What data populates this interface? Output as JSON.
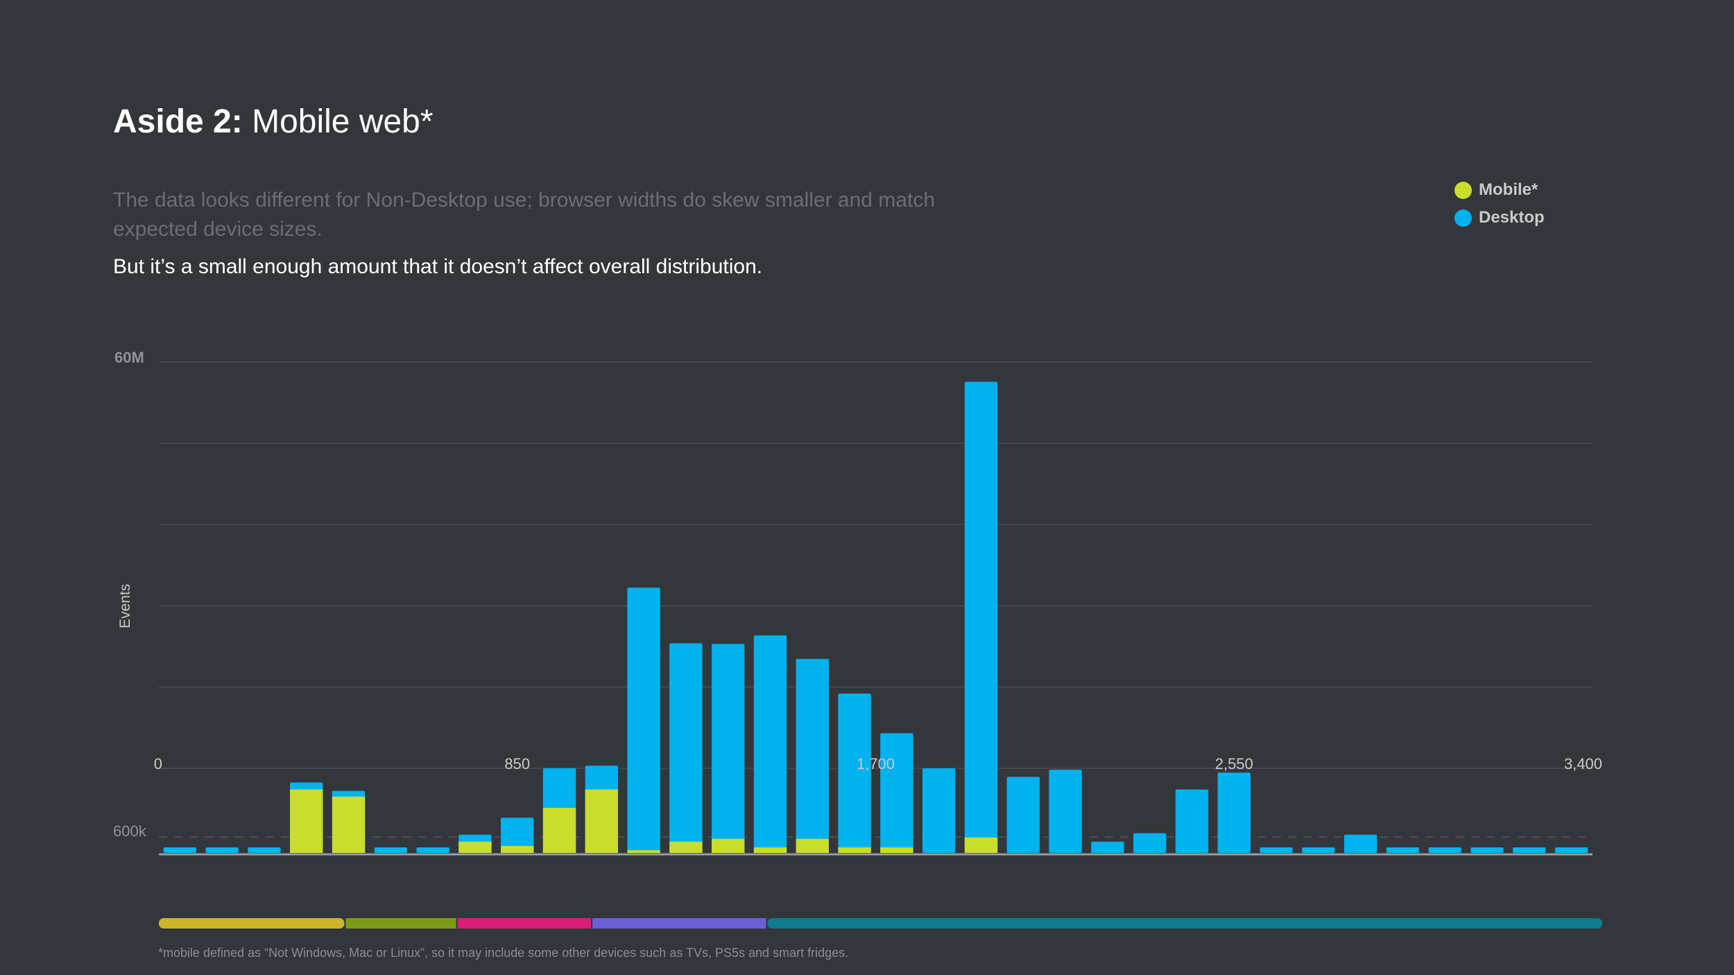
{
  "header": {
    "title_bold": "Aside 2:",
    "title_rest": "Mobile web*",
    "subtitle": "The data looks different for Non-Desktop use; browser widths do skew smaller and match expected device sizes.",
    "note": "But it’s a small enough amount that it doesn’t affect overall distribution."
  },
  "footnote": "*mobile defined as “Not Windows, Mac or Linux”, so it may include some other devices such as TVs, PS5s and smart fridges.",
  "colors": {
    "mobile": "#c8dd2c",
    "desktop": "#00b2ee",
    "background": "#33363b",
    "range_bar": [
      "#cdb527",
      "#7c9b14",
      "#d91e78",
      "#6a5fd8",
      "#0c7e8e"
    ]
  },
  "chart_data": {
    "type": "bar",
    "stacked": true,
    "ylabel": "Events",
    "y_tick_labels": [
      "60M",
      "600k"
    ],
    "x_tick_labels": [
      "0",
      "850",
      "1,700",
      "2,550",
      "3,400"
    ],
    "xlim": [
      0,
      3400
    ],
    "ylim_upper": [
      600000,
      60000000
    ],
    "ylim_lower": [
      0,
      600000
    ],
    "legend": [
      "Mobile*",
      "Desktop"
    ],
    "legend_position": "top-right",
    "series": [
      {
        "name": "Mobile*",
        "values": [
          0,
          0,
          0,
          450000,
          400000,
          0,
          0,
          80000,
          50000,
          320000,
          450000,
          20000,
          80000,
          100000,
          40000,
          100000,
          40000,
          40000,
          0,
          110000,
          0,
          0,
          0,
          0,
          0,
          0,
          0,
          0,
          0,
          0,
          0,
          0,
          0,
          0
        ]
      },
      {
        "name": "Desktop",
        "values": [
          40000,
          40000,
          40000,
          50000,
          40000,
          40000,
          40000,
          50000,
          200000,
          300000,
          540000,
          27000000,
          18800000,
          18700000,
          20000000,
          16500000,
          11500000,
          5700000,
          600000,
          57000000,
          540000,
          590000,
          80000,
          140000,
          450000,
          570000,
          40000,
          40000,
          130000,
          40000,
          40000,
          40000,
          40000,
          40000
        ]
      }
    ],
    "range_bands": [
      {
        "from": 0,
        "to": 440
      },
      {
        "from": 440,
        "to": 705
      },
      {
        "from": 705,
        "to": 1025
      },
      {
        "from": 1025,
        "to": 1440
      },
      {
        "from": 1440,
        "to": 3400
      }
    ]
  }
}
